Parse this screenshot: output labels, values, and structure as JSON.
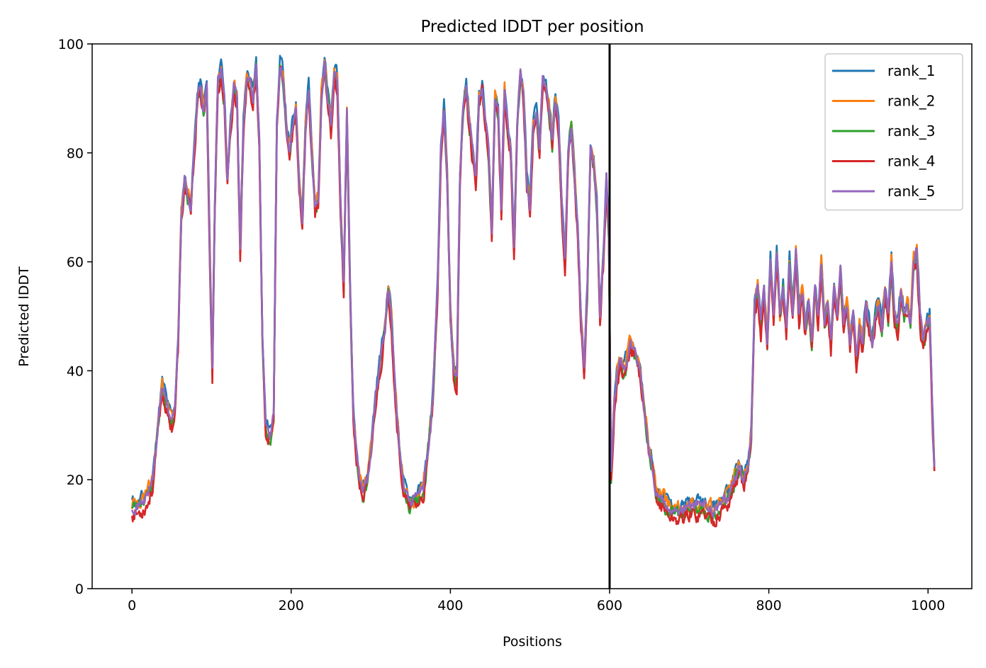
{
  "chart_data": {
    "type": "line",
    "title": "Predicted lDDT per position",
    "xlabel": "Positions",
    "ylabel": "Predicted lDDT",
    "xlim": [
      -50,
      1055
    ],
    "ylim": [
      0,
      100
    ],
    "xticks": [
      0,
      200,
      400,
      600,
      800,
      1000
    ],
    "yticks": [
      0,
      20,
      40,
      60,
      80,
      100
    ],
    "xtick_labels": [
      "0",
      "200",
      "400",
      "600",
      "800",
      "1000"
    ],
    "ytick_labels": [
      "0",
      "20",
      "40",
      "60",
      "80",
      "100"
    ],
    "vline_x": 600,
    "legend_position": "upper right",
    "grid": false,
    "x_end": 1008,
    "base": [
      [
        0,
        15
      ],
      [
        8,
        15
      ],
      [
        14,
        16
      ],
      [
        20,
        17
      ],
      [
        26,
        20
      ],
      [
        30,
        25
      ],
      [
        34,
        32
      ],
      [
        38,
        37
      ],
      [
        42,
        35
      ],
      [
        46,
        32
      ],
      [
        50,
        31
      ],
      [
        54,
        33
      ],
      [
        58,
        45
      ],
      [
        62,
        68
      ],
      [
        66,
        75
      ],
      [
        70,
        72
      ],
      [
        74,
        70
      ],
      [
        78,
        80
      ],
      [
        82,
        90
      ],
      [
        86,
        92
      ],
      [
        90,
        88
      ],
      [
        94,
        92
      ],
      [
        98,
        60
      ],
      [
        101,
        40
      ],
      [
        104,
        70
      ],
      [
        108,
        93
      ],
      [
        112,
        95
      ],
      [
        116,
        90
      ],
      [
        120,
        75
      ],
      [
        124,
        85
      ],
      [
        128,
        92
      ],
      [
        132,
        90
      ],
      [
        136,
        62
      ],
      [
        140,
        85
      ],
      [
        144,
        94
      ],
      [
        148,
        93
      ],
      [
        152,
        90
      ],
      [
        156,
        96
      ],
      [
        160,
        82
      ],
      [
        164,
        45
      ],
      [
        168,
        30
      ],
      [
        174,
        28
      ],
      [
        178,
        32
      ],
      [
        182,
        85
      ],
      [
        186,
        96
      ],
      [
        190,
        94
      ],
      [
        194,
        85
      ],
      [
        198,
        80
      ],
      [
        202,
        85
      ],
      [
        206,
        88
      ],
      [
        210,
        75
      ],
      [
        214,
        68
      ],
      [
        218,
        85
      ],
      [
        222,
        92
      ],
      [
        226,
        80
      ],
      [
        230,
        70
      ],
      [
        234,
        72
      ],
      [
        238,
        90
      ],
      [
        242,
        96
      ],
      [
        246,
        90
      ],
      [
        250,
        85
      ],
      [
        254,
        95
      ],
      [
        258,
        93
      ],
      [
        262,
        70
      ],
      [
        266,
        55
      ],
      [
        270,
        88
      ],
      [
        274,
        55
      ],
      [
        278,
        32
      ],
      [
        282,
        25
      ],
      [
        286,
        20
      ],
      [
        290,
        18
      ],
      [
        296,
        20
      ],
      [
        300,
        25
      ],
      [
        306,
        35
      ],
      [
        312,
        42
      ],
      [
        318,
        48
      ],
      [
        322,
        55
      ],
      [
        326,
        50
      ],
      [
        330,
        38
      ],
      [
        336,
        25
      ],
      [
        342,
        18
      ],
      [
        348,
        16
      ],
      [
        354,
        16
      ],
      [
        360,
        17
      ],
      [
        366,
        18
      ],
      [
        372,
        25
      ],
      [
        378,
        35
      ],
      [
        384,
        55
      ],
      [
        388,
        80
      ],
      [
        392,
        88
      ],
      [
        396,
        75
      ],
      [
        400,
        50
      ],
      [
        404,
        40
      ],
      [
        408,
        38
      ],
      [
        412,
        75
      ],
      [
        416,
        88
      ],
      [
        420,
        92
      ],
      [
        424,
        85
      ],
      [
        428,
        80
      ],
      [
        432,
        75
      ],
      [
        436,
        90
      ],
      [
        440,
        92
      ],
      [
        444,
        85
      ],
      [
        448,
        80
      ],
      [
        452,
        65
      ],
      [
        456,
        90
      ],
      [
        460,
        88
      ],
      [
        464,
        70
      ],
      [
        468,
        92
      ],
      [
        472,
        85
      ],
      [
        476,
        80
      ],
      [
        480,
        62
      ],
      [
        484,
        85
      ],
      [
        488,
        95
      ],
      [
        492,
        90
      ],
      [
        496,
        75
      ],
      [
        500,
        70
      ],
      [
        504,
        85
      ],
      [
        508,
        88
      ],
      [
        512,
        80
      ],
      [
        516,
        94
      ],
      [
        520,
        92
      ],
      [
        524,
        88
      ],
      [
        528,
        82
      ],
      [
        532,
        90
      ],
      [
        536,
        85
      ],
      [
        540,
        70
      ],
      [
        544,
        60
      ],
      [
        548,
        80
      ],
      [
        552,
        85
      ],
      [
        556,
        75
      ],
      [
        560,
        65
      ],
      [
        564,
        50
      ],
      [
        568,
        40
      ],
      [
        572,
        55
      ],
      [
        576,
        80
      ],
      [
        580,
        78
      ],
      [
        584,
        70
      ],
      [
        588,
        50
      ],
      [
        592,
        60
      ],
      [
        596,
        75
      ],
      [
        599,
        65
      ],
      [
        602,
        20
      ],
      [
        606,
        35
      ],
      [
        610,
        40
      ],
      [
        614,
        42
      ],
      [
        618,
        40
      ],
      [
        622,
        42
      ],
      [
        626,
        45
      ],
      [
        630,
        44
      ],
      [
        634,
        43
      ],
      [
        638,
        40
      ],
      [
        642,
        35
      ],
      [
        646,
        30
      ],
      [
        650,
        25
      ],
      [
        654,
        22
      ],
      [
        658,
        18
      ],
      [
        662,
        17
      ],
      [
        668,
        16
      ],
      [
        674,
        15
      ],
      [
        680,
        14
      ],
      [
        690,
        14
      ],
      [
        700,
        15
      ],
      [
        710,
        15
      ],
      [
        720,
        15
      ],
      [
        730,
        14
      ],
      [
        738,
        15
      ],
      [
        744,
        16
      ],
      [
        750,
        17
      ],
      [
        756,
        20
      ],
      [
        762,
        22
      ],
      [
        768,
        20
      ],
      [
        774,
        22
      ],
      [
        778,
        28
      ],
      [
        782,
        52
      ],
      [
        786,
        55
      ],
      [
        790,
        48
      ],
      [
        794,
        55
      ],
      [
        798,
        45
      ],
      [
        802,
        60
      ],
      [
        806,
        50
      ],
      [
        810,
        62
      ],
      [
        814,
        50
      ],
      [
        818,
        55
      ],
      [
        822,
        48
      ],
      [
        826,
        60
      ],
      [
        830,
        50
      ],
      [
        834,
        62
      ],
      [
        838,
        50
      ],
      [
        842,
        55
      ],
      [
        846,
        48
      ],
      [
        850,
        52
      ],
      [
        854,
        45
      ],
      [
        858,
        55
      ],
      [
        862,
        50
      ],
      [
        866,
        60
      ],
      [
        870,
        48
      ],
      [
        874,
        52
      ],
      [
        878,
        45
      ],
      [
        882,
        55
      ],
      [
        886,
        50
      ],
      [
        890,
        58
      ],
      [
        894,
        48
      ],
      [
        898,
        52
      ],
      [
        902,
        45
      ],
      [
        906,
        50
      ],
      [
        910,
        42
      ],
      [
        914,
        48
      ],
      [
        918,
        45
      ],
      [
        922,
        52
      ],
      [
        926,
        48
      ],
      [
        930,
        45
      ],
      [
        934,
        50
      ],
      [
        938,
        52
      ],
      [
        942,
        48
      ],
      [
        946,
        55
      ],
      [
        950,
        50
      ],
      [
        954,
        60
      ],
      [
        958,
        50
      ],
      [
        962,
        48
      ],
      [
        966,
        55
      ],
      [
        970,
        50
      ],
      [
        974,
        52
      ],
      [
        978,
        48
      ],
      [
        982,
        60
      ],
      [
        986,
        62
      ],
      [
        990,
        50
      ],
      [
        994,
        45
      ],
      [
        998,
        48
      ],
      [
        1002,
        50
      ],
      [
        1006,
        30
      ],
      [
        1008,
        22
      ]
    ],
    "series": [
      {
        "name": "rank_1",
        "color": "#1f77b4",
        "seed": 11,
        "offset": 1.0,
        "jitter": 2.2
      },
      {
        "name": "rank_2",
        "color": "#ff7f0e",
        "seed": 23,
        "offset": 0.5,
        "jitter": 2.6
      },
      {
        "name": "rank_3",
        "color": "#2ca02c",
        "seed": 37,
        "offset": -0.6,
        "jitter": 2.4
      },
      {
        "name": "rank_4",
        "color": "#d62728",
        "seed": 53,
        "offset": -1.2,
        "jitter": 2.8
      },
      {
        "name": "rank_5",
        "color": "#9467bd",
        "seed": 71,
        "offset": 0.2,
        "jitter": 1.8
      }
    ]
  }
}
